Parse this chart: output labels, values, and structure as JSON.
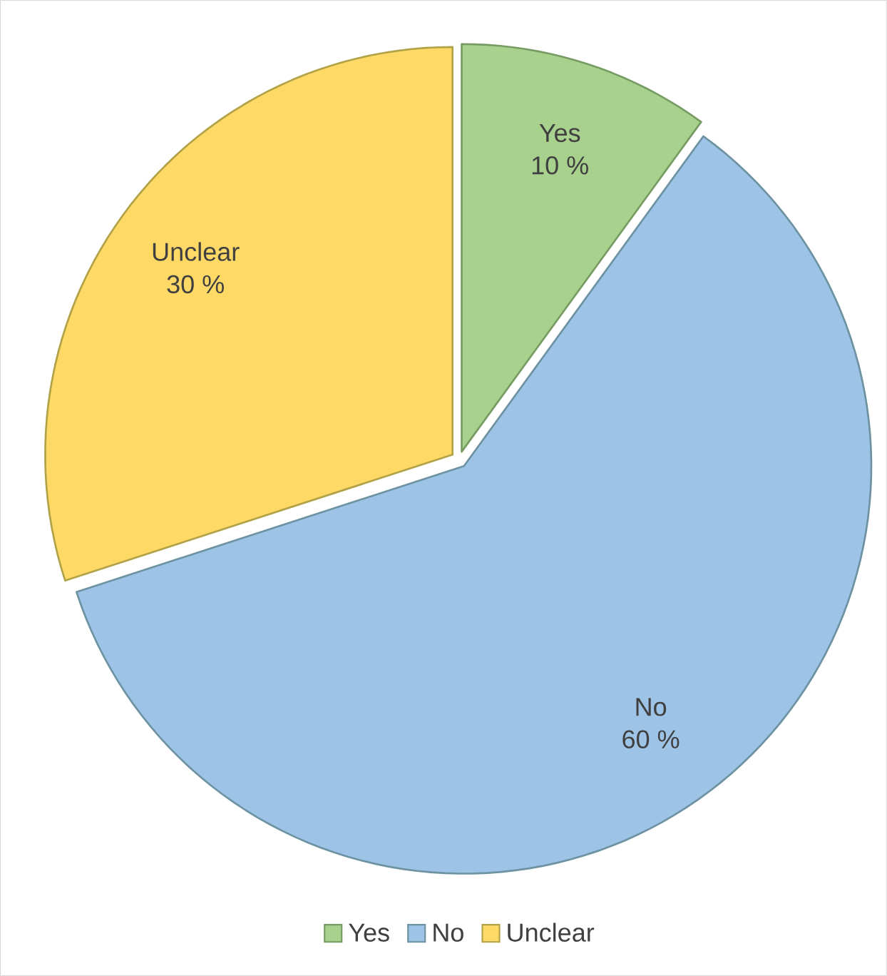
{
  "chart_data": {
    "type": "pie",
    "categories": [
      "Yes",
      "No",
      "Unclear"
    ],
    "values": [
      10,
      60,
      30
    ],
    "colors": [
      "#a9d18e",
      "#9dc3e6",
      "#ffd966"
    ],
    "value_labels": [
      "10 %",
      "60 %",
      "30 %"
    ],
    "legend": "bottom"
  }
}
